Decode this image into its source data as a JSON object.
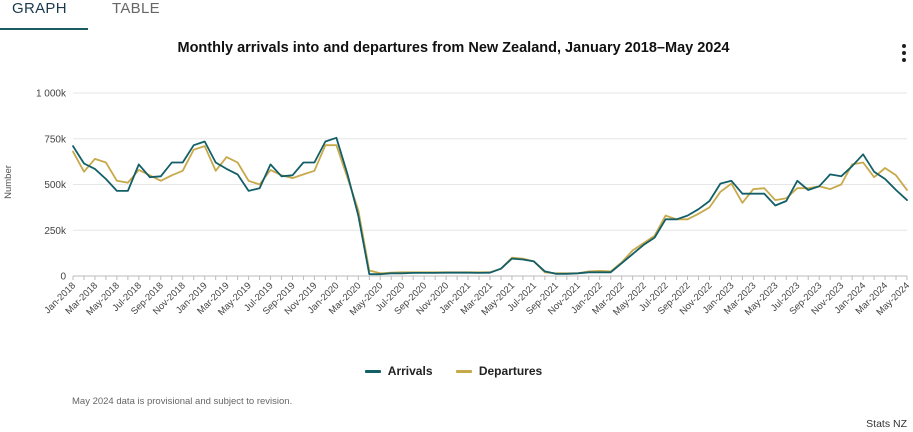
{
  "tabs": {
    "graph": "GRAPH",
    "table": "TABLE"
  },
  "menu_icon": "more-vertical-icon",
  "note": "May 2024 data is provisional and subject to revision.",
  "source": "Stats NZ",
  "colors": {
    "arrivals": "#135f68",
    "departures": "#c8a94a",
    "grid": "#e6e6e6",
    "axis": "#bbbbbb"
  },
  "chart_data": {
    "type": "line",
    "title": "Monthly arrivals into and departures from New Zealand, January 2018–May 2024",
    "ylabel": "Number",
    "xlabel": "",
    "ylim": [
      0,
      1000000
    ],
    "yticks": [
      {
        "value": 0,
        "label": "0"
      },
      {
        "value": 250000,
        "label": "250k"
      },
      {
        "value": 500000,
        "label": "500k"
      },
      {
        "value": 750000,
        "label": "750k"
      },
      {
        "value": 1000000,
        "label": "1 000k"
      }
    ],
    "grid": true,
    "legend_position": "bottom-center",
    "xtick_step": 2,
    "x": [
      "Jan-2018",
      "Feb-2018",
      "Mar-2018",
      "Apr-2018",
      "May-2018",
      "Jun-2018",
      "Jul-2018",
      "Aug-2018",
      "Sep-2018",
      "Oct-2018",
      "Nov-2018",
      "Dec-2018",
      "Jan-2019",
      "Feb-2019",
      "Mar-2019",
      "Apr-2019",
      "May-2019",
      "Jun-2019",
      "Jul-2019",
      "Aug-2019",
      "Sep-2019",
      "Oct-2019",
      "Nov-2019",
      "Dec-2019",
      "Jan-2020",
      "Feb-2020",
      "Mar-2020",
      "Apr-2020",
      "May-2020",
      "Jun-2020",
      "Jul-2020",
      "Aug-2020",
      "Sep-2020",
      "Oct-2020",
      "Nov-2020",
      "Dec-2020",
      "Jan-2021",
      "Feb-2021",
      "Mar-2021",
      "Apr-2021",
      "May-2021",
      "Jun-2021",
      "Jul-2021",
      "Aug-2021",
      "Sep-2021",
      "Oct-2021",
      "Nov-2021",
      "Dec-2021",
      "Jan-2022",
      "Feb-2022",
      "Mar-2022",
      "Apr-2022",
      "May-2022",
      "Jun-2022",
      "Jul-2022",
      "Aug-2022",
      "Sep-2022",
      "Oct-2022",
      "Nov-2022",
      "Dec-2022",
      "Jan-2023",
      "Feb-2023",
      "Mar-2023",
      "Apr-2023",
      "May-2023",
      "Jun-2023",
      "Jul-2023",
      "Aug-2023",
      "Sep-2023",
      "Oct-2023",
      "Nov-2023",
      "Dec-2023",
      "Jan-2024",
      "Feb-2024",
      "Mar-2024",
      "Apr-2024",
      "May-2024"
    ],
    "series": [
      {
        "name": "Arrivals",
        "values": [
          710000,
          615000,
          585000,
          530000,
          465000,
          465000,
          610000,
          540000,
          545000,
          620000,
          620000,
          715000,
          735000,
          620000,
          585000,
          555000,
          465000,
          480000,
          610000,
          545000,
          550000,
          620000,
          620000,
          735000,
          755000,
          560000,
          330000,
          10000,
          10000,
          15000,
          15000,
          17000,
          17000,
          17000,
          18000,
          18000,
          18000,
          17000,
          18000,
          40000,
          95000,
          90000,
          80000,
          25000,
          12000,
          12000,
          15000,
          20000,
          20000,
          20000,
          70000,
          120000,
          170000,
          210000,
          310000,
          310000,
          330000,
          365000,
          410000,
          505000,
          520000,
          450000,
          450000,
          450000,
          385000,
          410000,
          520000,
          470000,
          490000,
          555000,
          545000,
          600000,
          665000,
          570000,
          530000,
          470000,
          415000
        ]
      },
      {
        "name": "Departures",
        "values": [
          680000,
          570000,
          640000,
          620000,
          520000,
          510000,
          580000,
          550000,
          520000,
          550000,
          575000,
          690000,
          710000,
          575000,
          650000,
          620000,
          520000,
          500000,
          580000,
          550000,
          535000,
          555000,
          575000,
          715000,
          715000,
          540000,
          360000,
          30000,
          15000,
          18000,
          20000,
          20000,
          20000,
          20000,
          20000,
          20000,
          20000,
          20000,
          20000,
          40000,
          100000,
          95000,
          80000,
          20000,
          15000,
          15000,
          15000,
          25000,
          28000,
          25000,
          75000,
          140000,
          180000,
          220000,
          330000,
          310000,
          310000,
          340000,
          375000,
          460000,
          505000,
          400000,
          475000,
          480000,
          415000,
          425000,
          480000,
          480000,
          490000,
          475000,
          500000,
          610000,
          620000,
          540000,
          590000,
          550000,
          470000
        ]
      }
    ]
  }
}
